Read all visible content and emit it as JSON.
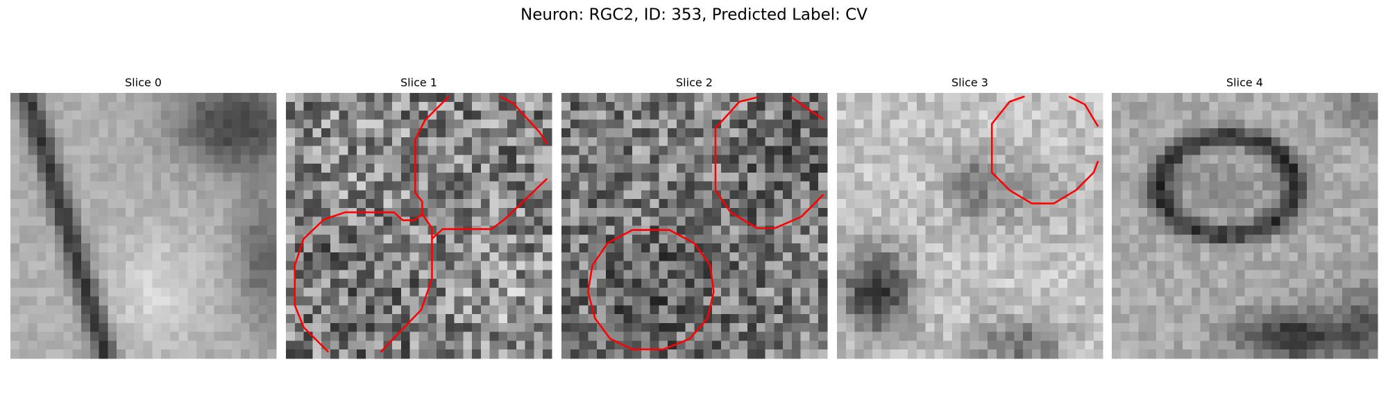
{
  "title": "Neuron: RGC2, ID: 353, Predicted Label: CV",
  "panels": [
    {
      "label": "Slice 0"
    },
    {
      "label": "Slice 1"
    },
    {
      "label": "Slice 2"
    },
    {
      "label": "Slice 3"
    },
    {
      "label": "Slice 4"
    }
  ]
}
